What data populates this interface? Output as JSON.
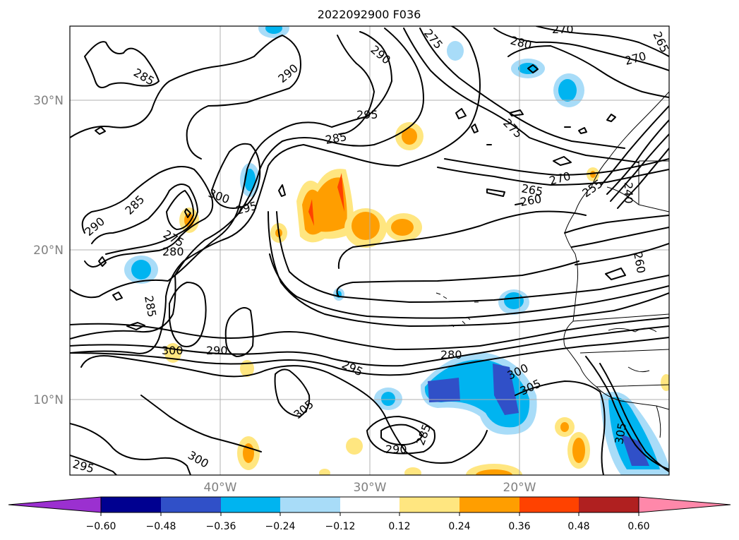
{
  "title": "2022092900 F036",
  "lat_labels": [
    "30°N",
    "20°N",
    "10°N"
  ],
  "lon_labels": [
    "40°W",
    "30°W",
    "20°W"
  ],
  "contour_labels": [
    "290",
    "295",
    "275",
    "280",
    "270",
    "265",
    "285",
    "290",
    "270",
    "275",
    "285",
    "300",
    "295",
    "285",
    "275",
    "290",
    "280",
    "265",
    "260",
    "270",
    "255",
    "240",
    "260",
    "285",
    "300",
    "290",
    "280",
    "295",
    "300",
    "305",
    "305",
    "285",
    "290",
    "295",
    "300",
    "305"
  ],
  "colorbar": {
    "ticks": [
      "−0.60",
      "−0.48",
      "−0.36",
      "−0.24",
      "−0.12",
      "0.12",
      "0.24",
      "0.36",
      "0.48",
      "0.60"
    ],
    "bins": [
      "#9b30d0",
      "#000090",
      "#3050c8",
      "#00b4f0",
      "#a8dcf8",
      "#ffffff",
      "#ffe680",
      "#ff9e00",
      "#ff4200",
      "#b02020",
      "#ff88aa"
    ],
    "extend": "both"
  },
  "colors": {
    "lightblue": "#a8dcf8",
    "cyan": "#00b4f0",
    "blue": "#3050c8",
    "yellow": "#ffe680",
    "orange": "#ff9e00",
    "red": "#ff4200"
  }
}
